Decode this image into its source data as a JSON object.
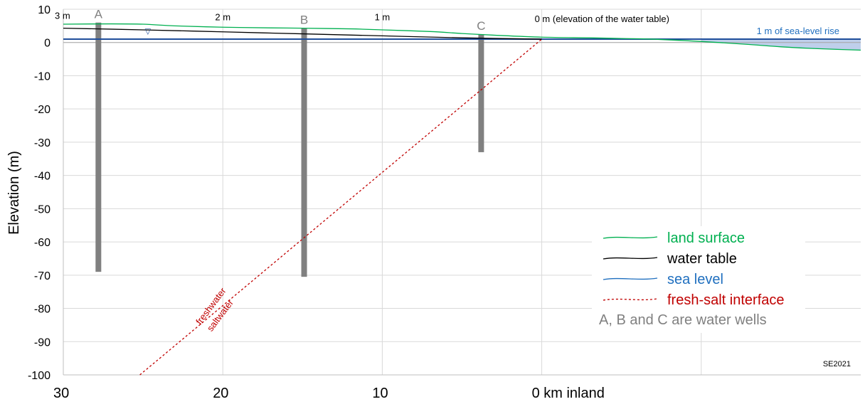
{
  "chart_data": {
    "type": "line",
    "title": "",
    "xlabel": "",
    "ylabel": "Elevation (m)",
    "xlim": [
      30,
      -20
    ],
    "ylim": [
      -100,
      10
    ],
    "x_ticks": [
      {
        "value": 30,
        "label": "30"
      },
      {
        "value": 20,
        "label": "20"
      },
      {
        "value": 10,
        "label": "10"
      },
      {
        "value": 0,
        "label": "0 km inland"
      }
    ],
    "x_gridlines": [
      30,
      20,
      10,
      0,
      -10
    ],
    "y_ticks": [
      10,
      0,
      -10,
      -20,
      -30,
      -40,
      -50,
      -60,
      -70,
      -80,
      -90,
      -100
    ],
    "grid": true,
    "series": [
      {
        "name": "land surface",
        "color": "#00b050",
        "x": [
          30,
          27,
          25,
          23,
          20,
          17,
          15,
          12,
          10,
          7,
          5,
          3,
          0,
          -3,
          -5,
          -7,
          -10,
          -13,
          -15,
          -17,
          -20
        ],
        "y": [
          5.5,
          5.6,
          5.5,
          5.0,
          4.6,
          4.4,
          4.3,
          4.1,
          3.8,
          3.3,
          2.7,
          2.2,
          1.6,
          1.4,
          1.2,
          1.0,
          0.3,
          -0.6,
          -1.3,
          -1.8,
          -2.3
        ]
      },
      {
        "name": "water table",
        "color": "#000000",
        "x": [
          30,
          25,
          20,
          15,
          10,
          5,
          0
        ],
        "y": [
          4.3,
          3.8,
          3.2,
          2.6,
          2.0,
          1.4,
          1.0
        ]
      },
      {
        "name": "sea level",
        "color": "#1f4e9b",
        "x": [
          30,
          -20
        ],
        "y": [
          1,
          1
        ]
      },
      {
        "name": "fresh-salt interface",
        "color": "#c00000",
        "dashed": true,
        "x": [
          25.2,
          0
        ],
        "y": [
          -100,
          1
        ]
      }
    ],
    "sea_fill": {
      "color": "#b4c7e7",
      "x": [
        -10,
        -20
      ],
      "top": 1
    },
    "zero_line": 0,
    "wells": [
      {
        "label": "A",
        "x": 27.8,
        "top": 6.0,
        "bottom": -69
      },
      {
        "label": "B",
        "x": 14.9,
        "top": 4.3,
        "bottom": -70.5
      },
      {
        "label": "C",
        "x": 3.8,
        "top": 2.5,
        "bottom": -33
      }
    ],
    "water_table_labels": [
      {
        "text": "3 m",
        "x": 30,
        "y": 8
      },
      {
        "text": "2 m",
        "x": 20,
        "y": 7.5
      },
      {
        "text": "1 m",
        "x": 10,
        "y": 7.5
      },
      {
        "text": "0 m (elevation of the water table)",
        "x": 0,
        "y": 7.0
      }
    ],
    "water_table_marker": {
      "symbol": "▽",
      "x": 24.7,
      "y": 4.3
    },
    "annotations": {
      "sea_level_rise": "1 m of sea-level rise",
      "freshwater": "freshwater",
      "saltwater": "saltwater",
      "credit": "SE2021"
    },
    "legend": {
      "position": "bottom-right",
      "entries": [
        {
          "label": "land surface",
          "color": "#00b050",
          "text_color": "#00b050",
          "dashed": false
        },
        {
          "label": "water table",
          "color": "#000000",
          "text_color": "#000000",
          "dashed": false
        },
        {
          "label": "sea level",
          "color": "#1f6fbf",
          "text_color": "#1f6fbf",
          "dashed": false
        },
        {
          "label": "fresh-salt interface",
          "color": "#c00000",
          "text_color": "#c00000",
          "dashed": true
        }
      ],
      "note": "A, B and C are  water wells",
      "note_color": "#808080"
    }
  }
}
